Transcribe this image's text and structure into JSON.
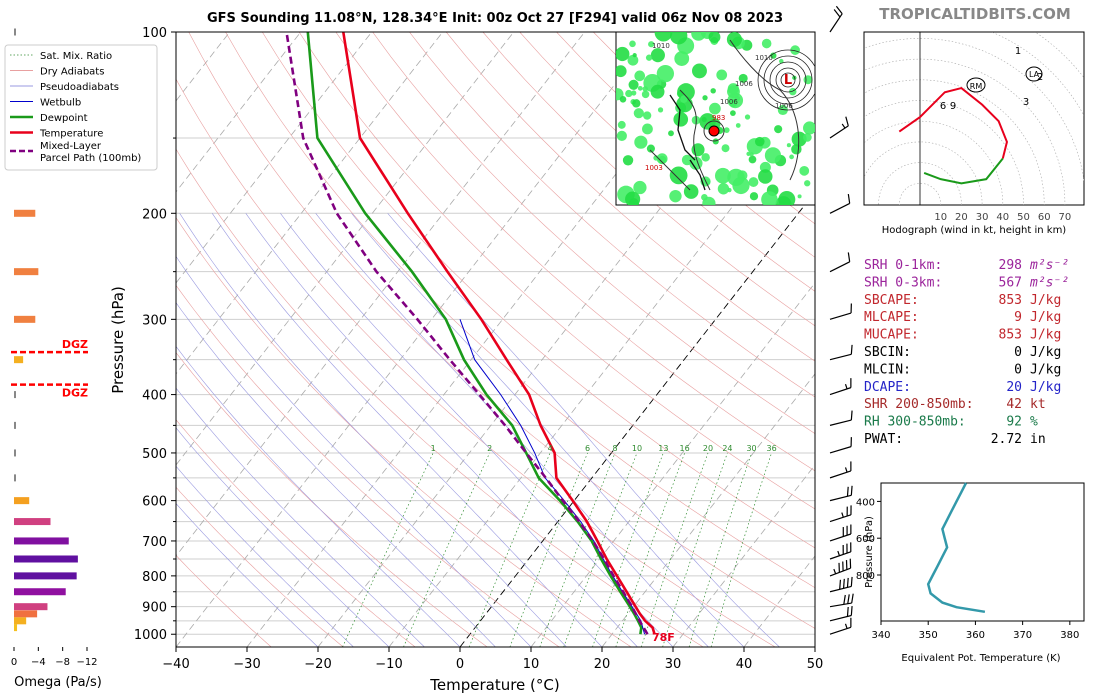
{
  "site": "TROPICALTIDBITS.COM",
  "title": "GFS Sounding 11.08°N, 128.34°E Init: 00z Oct 27 [F294] valid 06z Nov 08 2023",
  "chart_data": {
    "type": "line",
    "title": "GFS Sounding 11.08°N, 128.34°E Init: 00z Oct 27 [F294] valid 06z Nov 08 2023",
    "xlabel": "Temperature (°C)",
    "ylabel": "Pressure (hPa)",
    "xlim": [
      -40,
      50
    ],
    "ylim": [
      1050,
      100
    ],
    "x_ticks": [
      -40,
      -30,
      -20,
      -10,
      0,
      10,
      20,
      30,
      40,
      50
    ],
    "y_ticks": [
      1000,
      900,
      800,
      700,
      600,
      500,
      400,
      300,
      200,
      100
    ],
    "legend": [
      "Sat. Mix. Ratio",
      "Dry Adiabats",
      "Pseudoadiabats",
      "Wetbulb",
      "Dewpoint",
      "Temperature",
      "Mixed-Layer Parcel Path (100mb)"
    ],
    "mixing_ratio_labels": [
      "1",
      "2",
      "4",
      "6",
      "8",
      "10",
      "13",
      "16",
      "20",
      "24",
      "30",
      "36"
    ],
    "surface_label": "78F",
    "series": [
      {
        "name": "Temperature",
        "color": "#e8001c",
        "p": [
          1000,
          975,
          950,
          925,
          900,
          850,
          800,
          750,
          700,
          650,
          600,
          550,
          500,
          450,
          400,
          350,
          300,
          250,
          200,
          150,
          100
        ],
        "t": [
          26,
          25,
          23.2,
          21.7,
          20.3,
          17.4,
          14.3,
          11.0,
          7.7,
          4.1,
          -0.2,
          -5.0,
          -8.0,
          -13.0,
          -18.0,
          -25.0,
          -33.0,
          -43.0,
          -55.0,
          -70.0,
          -84.0
        ]
      },
      {
        "name": "Dewpoint",
        "color": "#1a9a1a",
        "p": [
          1000,
          975,
          950,
          925,
          900,
          850,
          800,
          750,
          700,
          650,
          600,
          550,
          500,
          450,
          400,
          350,
          300,
          250,
          200,
          150,
          100
        ],
        "t": [
          24,
          23.4,
          22.2,
          20.9,
          19.5,
          16.5,
          13.4,
          10.2,
          6.9,
          2.8,
          -2.0,
          -7.5,
          -12.0,
          -17.0,
          -24.0,
          -31.0,
          -38.0,
          -48.0,
          -61.0,
          -76.0,
          -89.0
        ]
      },
      {
        "name": "Wetbulb",
        "color": "#0000cc",
        "p": [
          1000,
          950,
          900,
          850,
          800,
          750,
          700,
          650,
          600,
          550,
          500,
          450,
          400,
          350,
          300
        ],
        "t": [
          24.6,
          22.6,
          19.8,
          16.8,
          13.7,
          10.5,
          7.2,
          3.2,
          -1.4,
          -6.6,
          -10.8,
          -15.8,
          -22.0,
          -29.5,
          -36.0
        ]
      },
      {
        "name": "Mixed-Layer Parcel Path (100mb)",
        "color": "#800080",
        "p": [
          1000,
          950,
          900,
          850,
          800,
          750,
          700,
          650,
          600,
          550,
          500,
          450,
          400,
          350,
          300,
          250,
          200,
          150,
          100
        ],
        "t": [
          25.0,
          22.4,
          19.8,
          16.9,
          13.8,
          10.6,
          7.1,
          3.0,
          -1.6,
          -6.5,
          -12.0,
          -18.0,
          -25.0,
          -33.0,
          -42.0,
          -53.0,
          -65.0,
          -78.0,
          -92.0
        ]
      }
    ],
    "wind_barbs": {
      "p": [
        100,
        150,
        200,
        250,
        300,
        350,
        400,
        450,
        500,
        550,
        600,
        650,
        700,
        750,
        800,
        850,
        900,
        950,
        1000
      ],
      "u": [
        -10,
        -12,
        -10,
        -10,
        -10,
        -12,
        -15,
        -12,
        -10,
        -15,
        -20,
        -25,
        -30,
        -35,
        -40,
        -40,
        -30,
        -20,
        -15
      ],
      "v": [
        -15,
        -8,
        -5,
        -5,
        -3,
        -3,
        -5,
        -3,
        -3,
        -5,
        -5,
        -8,
        -10,
        -12,
        -15,
        -10,
        -5,
        -5,
        -5
      ]
    },
    "omega": {
      "label": "Omega (Pa/s)",
      "ticks": [
        "0",
        "−4",
        "−8",
        "−12"
      ],
      "dgz_label": "DGZ",
      "dgz_p": [
        340,
        385
      ],
      "p": [
        100,
        200,
        250,
        300,
        350,
        400,
        450,
        500,
        550,
        600,
        650,
        700,
        750,
        800,
        850,
        900,
        925,
        950,
        975
      ],
      "values": [
        -0.3,
        -3.5,
        -4.0,
        -3.5,
        -1.5,
        -0.3,
        -0.3,
        -0.3,
        -0.1,
        -2.5,
        -6.0,
        -9.0,
        -10.5,
        -10.3,
        -8.5,
        -5.5,
        -3.8,
        -2.0,
        -0.5
      ],
      "colors": [
        "#888888",
        "#f08040",
        "#f08040",
        "#f08040",
        "#f4b020",
        "#888888",
        "#888888",
        "#888888",
        "#888888",
        "#f4a020",
        "#d04080",
        "#8010a0",
        "#6010a0",
        "#6010a0",
        "#9010a0",
        "#d04080",
        "#f07040",
        "#f4b020",
        "#f4c020"
      ]
    },
    "hodograph": {
      "label": "Hodograph (wind in kt, height in km)",
      "rings": [
        "10",
        "20",
        "30",
        "40",
        "50",
        "60",
        "70"
      ],
      "points_red": [
        [
          -10,
          35
        ],
        [
          0,
          42
        ],
        [
          12,
          54
        ],
        [
          20,
          56
        ],
        [
          30,
          48
        ],
        [
          38,
          40
        ],
        [
          42,
          30
        ],
        [
          40,
          22
        ]
      ],
      "points_green": [
        [
          40,
          22
        ],
        [
          32,
          12
        ],
        [
          20,
          10
        ],
        [
          10,
          12
        ],
        [
          2,
          15
        ]
      ],
      "labels": [
        "1",
        "2",
        "3",
        "6",
        "9"
      ],
      "rm_label": "RM",
      "la_label": "LA"
    },
    "theta_e": {
      "xlabel": "Equivalent Pot. Temperature (K)",
      "ylabel": "Pressure (hPa)",
      "x_ticks": [
        "340",
        "350",
        "360",
        "370",
        "380"
      ],
      "y_ticks": [
        "400",
        "600",
        "800"
      ],
      "p": [
        300,
        350,
        400,
        450,
        500,
        550,
        600,
        650,
        700,
        750,
        800,
        850,
        900,
        950,
        975,
        1000
      ],
      "theta": [
        358,
        357,
        356,
        355,
        354,
        353,
        353.5,
        354,
        353,
        352,
        351,
        350,
        350.5,
        353,
        356,
        362
      ]
    }
  },
  "indices": [
    {
      "label": "SRH 0-1km:",
      "value": "298",
      "unit": "m²s⁻²",
      "color": "#9b249b"
    },
    {
      "label": "SRH 0-3km:",
      "value": "567",
      "unit": "m²s⁻²",
      "color": "#9b249b"
    },
    {
      "label": "SBCAPE:",
      "value": "853",
      "unit": "J/kg",
      "color": "#c1272d"
    },
    {
      "label": "MLCAPE:",
      "value": "9",
      "unit": "J/kg",
      "color": "#c1272d"
    },
    {
      "label": "MUCAPE:",
      "value": "853",
      "unit": "J/kg",
      "color": "#c1272d"
    },
    {
      "label": "SBCIN:",
      "value": "0",
      "unit": "J/kg",
      "color": "#000000"
    },
    {
      "label": "MLCIN:",
      "value": "0",
      "unit": "J/kg",
      "color": "#000000"
    },
    {
      "label": "DCAPE:",
      "value": "20",
      "unit": "J/kg",
      "color": "#2424c8"
    },
    {
      "label": "SHR 200-850mb:",
      "value": "42",
      "unit": "kt",
      "color": "#a52a2a"
    },
    {
      "label": "RH 300-850mb:",
      "value": "92",
      "unit": "%",
      "color": "#1a7a4a"
    },
    {
      "label": "PWAT:",
      "value": "2.72",
      "unit": "in",
      "color": "#000000"
    }
  ],
  "inset_map": {
    "pressure_labels": [
      "1010",
      "1006",
      "1006",
      "1006",
      "1010",
      "983",
      "1003"
    ],
    "low_label": "L"
  }
}
